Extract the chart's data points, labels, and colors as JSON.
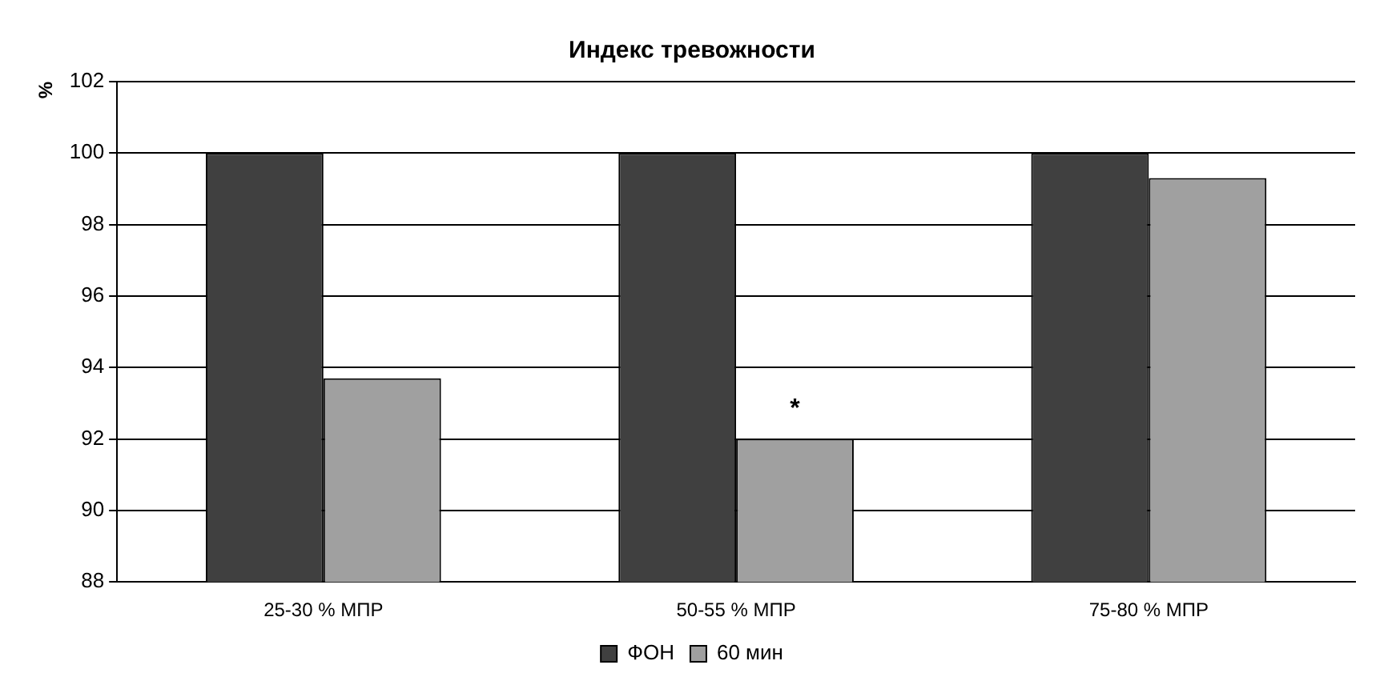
{
  "chart_data": {
    "type": "bar",
    "title": "Индекс тревожности",
    "ylabel": "%",
    "categories": [
      "25-30 % МПР",
      "50-55 % МПР",
      "75-80 % МПР"
    ],
    "series": [
      {
        "name": "ФОН",
        "color": "#404040",
        "values": [
          100,
          100,
          100
        ]
      },
      {
        "name": "60 мин",
        "color": "#a0a0a0",
        "values": [
          93.7,
          92.0,
          99.3
        ]
      }
    ],
    "ylim": [
      88,
      102
    ],
    "yticks": [
      88,
      90,
      92,
      94,
      96,
      98,
      100,
      102
    ],
    "grid": "y",
    "legend": "bottom",
    "annotations": [
      {
        "text": "*",
        "x": "50-55 % МПР",
        "y": 93.2
      }
    ]
  }
}
